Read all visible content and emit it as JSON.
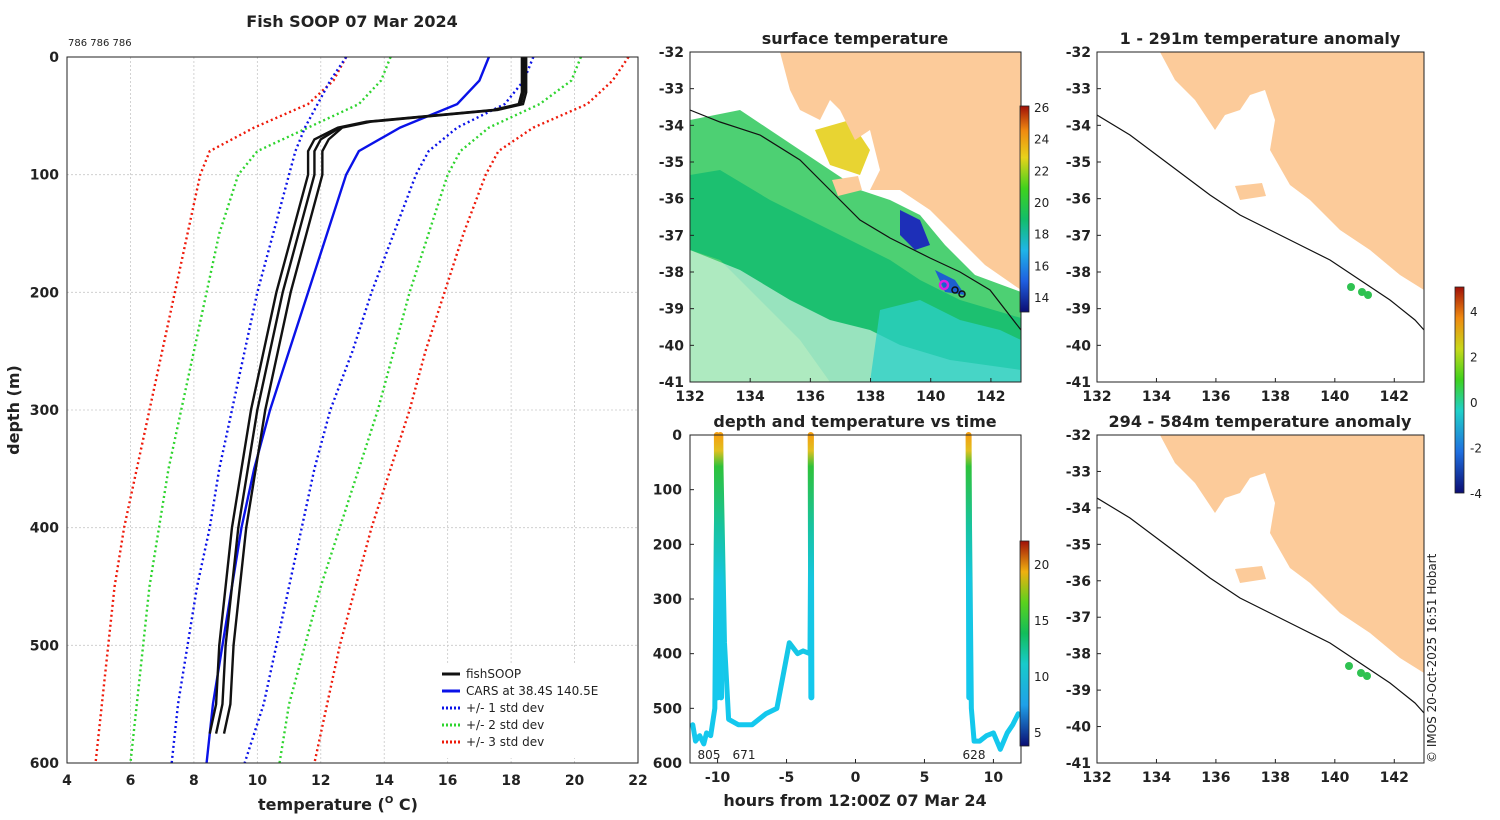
{
  "colors": {
    "black": "#111111",
    "blue": "#0a12e8",
    "green": "#2ed42e",
    "red": "#ee1a0a",
    "land": "#fccb9a",
    "dot": "#2fc251"
  },
  "panels": {
    "profile": {
      "title": "Fish SOOP 07 Mar 2024",
      "ids_note": "786 786 786",
      "xlabel": "temperature (",
      "xlabel_sup": "O",
      "xlabel_end": " C)",
      "ylabel": "depth (m)",
      "xticks": [
        "4",
        "6",
        "8",
        "10",
        "12",
        "14",
        "16",
        "18",
        "20",
        "22"
      ],
      "yticks": [
        "0",
        "100",
        "200",
        "300",
        "400",
        "500",
        "600"
      ],
      "legend": [
        "fishSOOP",
        "CARS at 38.4S 140.5E",
        "+/- 1 std dev",
        "+/- 2 std dev",
        "+/- 3 std dev"
      ]
    },
    "sst": {
      "title": "surface temperature",
      "yticks": [
        "-32",
        "-33",
        "-34",
        "-35",
        "-36",
        "-37",
        "-38",
        "-39",
        "-40",
        "-41"
      ],
      "xticks": [
        "132",
        "134",
        "136",
        "138",
        "140",
        "142"
      ],
      "colorbar_ticks": [
        "26",
        "24",
        "22",
        "20",
        "18",
        "16",
        "14"
      ]
    },
    "time": {
      "title": "depth and temperature vs time",
      "xlabel": "hours from 12:00Z 07 Mar 24",
      "xticks": [
        "-10",
        "-5",
        "0",
        "5",
        "10"
      ],
      "yticks": [
        "0",
        "100",
        "200",
        "300",
        "400",
        "500",
        "600"
      ],
      "colorbar_ticks": [
        "20",
        "15",
        "10",
        "5"
      ],
      "labels": [
        "805",
        "671",
        "628"
      ]
    },
    "anom_top": {
      "title": "1 - 291m temperature anomaly",
      "yticks": [
        "-32",
        "-33",
        "-34",
        "-35",
        "-36",
        "-37",
        "-38",
        "-39",
        "-40",
        "-41"
      ],
      "xticks": [
        "132",
        "134",
        "136",
        "138",
        "140",
        "142"
      ]
    },
    "anom_bot": {
      "title": "294 - 584m temperature anomaly",
      "yticks": [
        "-32",
        "-33",
        "-34",
        "-35",
        "-36",
        "-37",
        "-38",
        "-39",
        "-40",
        "-41"
      ],
      "xticks": [
        "132",
        "134",
        "136",
        "138",
        "140",
        "142"
      ]
    },
    "anom_colorbar_ticks": [
      "4",
      "2",
      "0",
      "-2",
      "-4"
    ],
    "credit": "© IMOS 20-Oct-2025 16:51 Hobart"
  },
  "chart_data": [
    {
      "type": "line",
      "title": "Fish SOOP 07 Mar 2024",
      "xlabel": "temperature (O C)",
      "ylabel": "depth (m)",
      "xlim": [
        4,
        22
      ],
      "ylim": [
        600,
        0
      ],
      "series": [
        {
          "name": "fishSOOP",
          "depth": [
            0,
            10,
            20,
            30,
            40,
            45,
            50,
            55,
            60,
            70,
            80,
            100,
            150,
            200,
            250,
            300,
            350,
            400,
            450,
            500,
            550,
            575
          ],
          "temp": [
            18.4,
            18.4,
            18.4,
            18.4,
            18.3,
            17.5,
            15.5,
            13.5,
            12.6,
            12.0,
            11.8,
            11.8,
            11.3,
            10.8,
            10.4,
            10.0,
            9.7,
            9.4,
            9.2,
            9.0,
            8.9,
            8.7
          ]
        },
        {
          "name": "CARS at 38.4S 140.5E",
          "depth": [
            0,
            20,
            40,
            60,
            80,
            100,
            150,
            200,
            250,
            300,
            350,
            400,
            450,
            500,
            550,
            600
          ],
          "temp": [
            17.3,
            17.0,
            16.3,
            14.5,
            13.2,
            12.8,
            12.2,
            11.6,
            11.0,
            10.4,
            9.9,
            9.5,
            9.2,
            8.9,
            8.6,
            8.4
          ]
        },
        {
          "name": "+/- 1 std dev",
          "depth": [
            0,
            20,
            40,
            60,
            80,
            100,
            150,
            200,
            250,
            300,
            350,
            400,
            450,
            500,
            550,
            600
          ],
          "lower": [
            12.8,
            12.3,
            11.9,
            11.5,
            11.2,
            11.0,
            10.5,
            10.0,
            9.6,
            9.2,
            8.8,
            8.5,
            8.1,
            7.8,
            7.5,
            7.3
          ],
          "upper": [
            18.7,
            18.4,
            17.8,
            16.3,
            15.4,
            15.0,
            14.3,
            13.6,
            13.0,
            12.3,
            11.8,
            11.4,
            11.0,
            10.6,
            10.2,
            9.6
          ]
        },
        {
          "name": "+/- 2 std dev",
          "depth": [
            0,
            20,
            40,
            60,
            80,
            100,
            150,
            200,
            250,
            300,
            350,
            400,
            450,
            500,
            550,
            600
          ],
          "lower": [
            14.2,
            13.9,
            13.2,
            11.6,
            10.0,
            9.4,
            8.8,
            8.4,
            8.0,
            7.6,
            7.2,
            6.9,
            6.6,
            6.4,
            6.2,
            6.0
          ],
          "upper": [
            20.2,
            19.9,
            18.9,
            17.3,
            16.4,
            16.0,
            15.4,
            14.8,
            14.3,
            13.8,
            13.2,
            12.6,
            12.0,
            11.5,
            11.0,
            10.7
          ]
        },
        {
          "name": "+/- 3 std dev",
          "depth": [
            0,
            20,
            40,
            60,
            80,
            100,
            150,
            200,
            250,
            300,
            350,
            400,
            450,
            500,
            550,
            600
          ],
          "lower": [
            12.8,
            12.4,
            11.6,
            9.9,
            8.5,
            8.2,
            7.8,
            7.4,
            7.0,
            6.6,
            6.2,
            5.8,
            5.5,
            5.3,
            5.1,
            4.9
          ],
          "upper": [
            21.7,
            21.2,
            20.4,
            18.7,
            17.6,
            17.2,
            16.5,
            15.9,
            15.3,
            14.8,
            14.2,
            13.6,
            13.1,
            12.6,
            12.2,
            11.8
          ]
        }
      ]
    },
    {
      "type": "line",
      "title": "depth and temperature vs time",
      "xlabel": "hours from 12:00Z 07 Mar 24",
      "xlim": [
        -12,
        12
      ],
      "ylim": [
        600,
        0
      ],
      "series": [
        {
          "name": "cast 805",
          "x": [
            -11.8,
            -11.6,
            -11.3,
            -11.0,
            -10.8,
            -10.5,
            -10.2,
            -10.1,
            -10.0
          ],
          "depth": [
            530,
            560,
            550,
            565,
            545,
            550,
            500,
            200,
            0
          ]
        },
        {
          "name": "cast 671",
          "x": [
            -9.8,
            -9.5,
            -9.2,
            -8.5,
            -7.5,
            -6.5,
            -5.7,
            -4.8,
            -4.2,
            -3.8,
            -3.3,
            -3.2
          ],
          "depth": [
            0,
            380,
            520,
            530,
            530,
            510,
            500,
            380,
            400,
            395,
            400,
            0
          ]
        },
        {
          "name": "cast 628",
          "x": [
            8.2,
            8.4,
            8.6,
            9.0,
            9.5,
            10.0,
            10.5,
            11.0,
            11.4,
            11.8
          ],
          "depth": [
            0,
            500,
            560,
            560,
            550,
            545,
            575,
            545,
            530,
            510
          ]
        }
      ]
    }
  ]
}
